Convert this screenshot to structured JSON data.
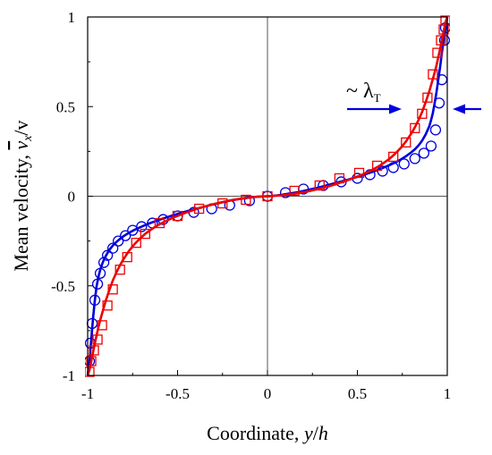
{
  "chart_data": {
    "type": "line",
    "title": "",
    "xlabel_prefix": "Coordinate, ",
    "xlabel_var": "y",
    "xlabel_sep": "/",
    "xlabel_var2": "h",
    "ylabel_prefix": "Mean velocity, ",
    "ylabel_var": "v",
    "ylabel_sub": "x",
    "ylabel_sep": "/",
    "ylabel_var2": "v",
    "xlim": [
      -1,
      1
    ],
    "ylim": [
      -1,
      1
    ],
    "xticks": [
      "-1",
      "-0.5",
      "0",
      "0.5",
      "1"
    ],
    "xtick_values": [
      -1,
      -0.5,
      0,
      0.5,
      1
    ],
    "yticks": [
      "1",
      "0.5",
      "0",
      "-0.5",
      "-1"
    ],
    "ytick_values": [
      1,
      0.5,
      0,
      -0.5,
      -1
    ],
    "grid": false,
    "zero_lines": true,
    "annotation": {
      "prefix": "~ λ",
      "sub": "T",
      "arrow_color": "#0000dd"
    },
    "series": [
      {
        "line_color": "#0000dd",
        "marker": "circle",
        "marker_color": "#0000dd",
        "x": [
          -0.99,
          -0.985,
          -0.975,
          -0.96,
          -0.945,
          -0.93,
          -0.91,
          -0.89,
          -0.86,
          -0.83,
          -0.79,
          -0.75,
          -0.7,
          -0.64,
          -0.58,
          -0.5,
          -0.41,
          -0.31,
          -0.21,
          -0.1,
          0.0,
          0.1,
          0.2,
          0.31,
          0.41,
          0.5,
          0.57,
          0.64,
          0.7,
          0.76,
          0.82,
          0.87,
          0.91,
          0.935,
          0.955,
          0.97,
          0.985,
          0.99
        ],
        "y": [
          -0.92,
          -0.82,
          -0.71,
          -0.58,
          -0.49,
          -0.43,
          -0.37,
          -0.33,
          -0.29,
          -0.25,
          -0.22,
          -0.19,
          -0.17,
          -0.15,
          -0.13,
          -0.11,
          -0.09,
          -0.07,
          -0.05,
          -0.025,
          0.0,
          0.02,
          0.04,
          0.06,
          0.08,
          0.1,
          0.12,
          0.14,
          0.16,
          0.18,
          0.21,
          0.24,
          0.28,
          0.37,
          0.52,
          0.65,
          0.87,
          0.94
        ],
        "curve_x": [
          -1.0,
          -0.99,
          -0.98,
          -0.97,
          -0.96,
          -0.95,
          -0.94,
          -0.93,
          -0.92,
          -0.91,
          -0.9,
          -0.88,
          -0.86,
          -0.84,
          -0.82,
          -0.8,
          -0.77,
          -0.74,
          -0.71,
          -0.68,
          -0.65,
          -0.62,
          -0.59,
          -0.56,
          -0.53,
          -0.5,
          -0.47,
          -0.44,
          -0.41,
          -0.38,
          -0.35,
          -0.32,
          -0.29,
          -0.26,
          -0.23,
          -0.2,
          -0.17,
          -0.14,
          -0.11,
          -0.08,
          -0.05,
          -0.02,
          0.0,
          0.02,
          0.05,
          0.08,
          0.11,
          0.14,
          0.17,
          0.2,
          0.23,
          0.26,
          0.29,
          0.32,
          0.35,
          0.38,
          0.41,
          0.44,
          0.47,
          0.5,
          0.53,
          0.56,
          0.59,
          0.62,
          0.65,
          0.68,
          0.71,
          0.74,
          0.77,
          0.8,
          0.82,
          0.84,
          0.86,
          0.88,
          0.9,
          0.91,
          0.92,
          0.93,
          0.94,
          0.95,
          0.96,
          0.97,
          0.98,
          0.99,
          1.0
        ],
        "curve_y": [
          -1.0,
          -0.92,
          -0.8,
          -0.68,
          -0.58,
          -0.5,
          -0.45,
          -0.41,
          -0.38,
          -0.355,
          -0.335,
          -0.3,
          -0.275,
          -0.255,
          -0.238,
          -0.223,
          -0.204,
          -0.188,
          -0.174,
          -0.161,
          -0.149,
          -0.138,
          -0.128,
          -0.118,
          -0.108,
          -0.099,
          -0.09,
          -0.082,
          -0.074,
          -0.066,
          -0.058,
          -0.05,
          -0.043,
          -0.036,
          -0.029,
          -0.023,
          -0.018,
          -0.013,
          -0.009,
          -0.005,
          -0.002,
          -0.001,
          0.0,
          0.001,
          0.004,
          0.008,
          0.013,
          0.018,
          0.023,
          0.029,
          0.036,
          0.043,
          0.05,
          0.058,
          0.066,
          0.074,
          0.082,
          0.09,
          0.099,
          0.108,
          0.118,
          0.128,
          0.138,
          0.149,
          0.161,
          0.174,
          0.188,
          0.204,
          0.223,
          0.245,
          0.262,
          0.283,
          0.31,
          0.345,
          0.39,
          0.425,
          0.465,
          0.52,
          0.58,
          0.65,
          0.72,
          0.8,
          0.87,
          0.93,
          1.0
        ]
      },
      {
        "line_color": "#ee0000",
        "marker": "square",
        "marker_color": "#ee0000",
        "x": [
          -0.99,
          -0.98,
          -0.965,
          -0.945,
          -0.92,
          -0.89,
          -0.86,
          -0.82,
          -0.78,
          -0.73,
          -0.68,
          -0.6,
          -0.5,
          -0.38,
          -0.25,
          -0.12,
          0.0,
          0.15,
          0.29,
          0.4,
          0.51,
          0.61,
          0.7,
          0.77,
          0.82,
          0.86,
          0.89,
          0.92,
          0.945,
          0.965,
          0.98,
          0.99
        ],
        "y": [
          -0.98,
          -0.92,
          -0.86,
          -0.8,
          -0.72,
          -0.61,
          -0.52,
          -0.41,
          -0.34,
          -0.26,
          -0.21,
          -0.15,
          -0.11,
          -0.07,
          -0.04,
          -0.02,
          0.0,
          0.03,
          0.06,
          0.1,
          0.13,
          0.17,
          0.22,
          0.3,
          0.38,
          0.46,
          0.55,
          0.68,
          0.8,
          0.87,
          0.93,
          0.98
        ],
        "curve_x": [
          -1.0,
          -0.99,
          -0.98,
          -0.97,
          -0.96,
          -0.95,
          -0.94,
          -0.93,
          -0.92,
          -0.91,
          -0.9,
          -0.88,
          -0.86,
          -0.84,
          -0.82,
          -0.8,
          -0.77,
          -0.74,
          -0.71,
          -0.68,
          -0.65,
          -0.62,
          -0.59,
          -0.56,
          -0.53,
          -0.5,
          -0.47,
          -0.44,
          -0.41,
          -0.38,
          -0.35,
          -0.32,
          -0.29,
          -0.26,
          -0.23,
          -0.2,
          -0.17,
          -0.14,
          -0.11,
          -0.08,
          -0.05,
          -0.02,
          0.0,
          0.02,
          0.05,
          0.08,
          0.11,
          0.14,
          0.17,
          0.2,
          0.23,
          0.26,
          0.29,
          0.32,
          0.35,
          0.38,
          0.41,
          0.44,
          0.47,
          0.5,
          0.53,
          0.56,
          0.59,
          0.62,
          0.65,
          0.68,
          0.71,
          0.74,
          0.77,
          0.8,
          0.82,
          0.84,
          0.86,
          0.88,
          0.9,
          0.91,
          0.92,
          0.93,
          0.94,
          0.95,
          0.96,
          0.97,
          0.98,
          0.99,
          1.0
        ],
        "curve_y": [
          -1.0,
          -0.97,
          -0.92,
          -0.87,
          -0.82,
          -0.775,
          -0.73,
          -0.69,
          -0.655,
          -0.62,
          -0.585,
          -0.525,
          -0.47,
          -0.425,
          -0.385,
          -0.35,
          -0.305,
          -0.268,
          -0.237,
          -0.21,
          -0.188,
          -0.168,
          -0.151,
          -0.136,
          -0.122,
          -0.11,
          -0.098,
          -0.087,
          -0.077,
          -0.067,
          -0.058,
          -0.05,
          -0.042,
          -0.035,
          -0.028,
          -0.022,
          -0.017,
          -0.012,
          -0.008,
          -0.005,
          -0.003,
          -0.001,
          0.0,
          0.001,
          0.003,
          0.005,
          0.008,
          0.012,
          0.017,
          0.022,
          0.028,
          0.035,
          0.042,
          0.05,
          0.058,
          0.067,
          0.077,
          0.087,
          0.098,
          0.11,
          0.122,
          0.136,
          0.151,
          0.168,
          0.188,
          0.21,
          0.237,
          0.268,
          0.305,
          0.35,
          0.385,
          0.425,
          0.47,
          0.525,
          0.585,
          0.62,
          0.655,
          0.69,
          0.73,
          0.775,
          0.82,
          0.87,
          0.92,
          0.97,
          1.0
        ]
      }
    ]
  }
}
